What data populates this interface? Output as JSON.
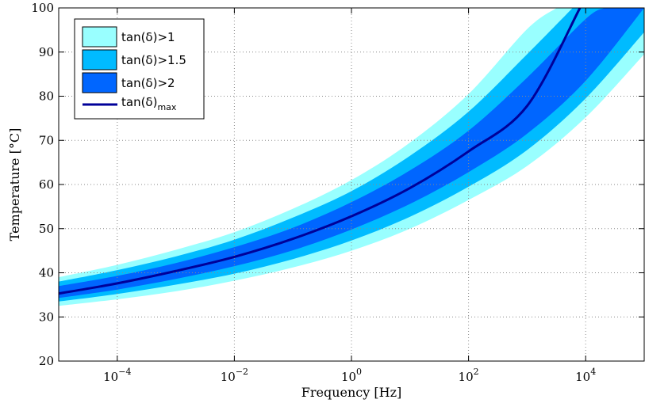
{
  "chart_data": {
    "type": "area",
    "title": "",
    "xlabel": "Frequency [Hz]",
    "ylabel": "Temperature [°C]",
    "x_scale": "log",
    "xlim": [
      1e-05,
      100000.0
    ],
    "ylim": [
      20,
      100
    ],
    "x_ticks": [
      {
        "value": 0.0001,
        "base": "10",
        "exp": "−4"
      },
      {
        "value": 0.01,
        "base": "10",
        "exp": "−2"
      },
      {
        "value": 1,
        "base": "10",
        "exp": "0"
      },
      {
        "value": 100,
        "base": "10",
        "exp": "2"
      },
      {
        "value": 10000,
        "base": "10",
        "exp": "4"
      }
    ],
    "y_ticks": [
      20,
      30,
      40,
      50,
      60,
      70,
      80,
      90,
      100
    ],
    "grid": true,
    "legend_position": "top-left",
    "legend": {
      "band1": "tan(δ)>1",
      "band15": "tan(δ)>1.5",
      "band2": "tan(δ)>2",
      "line_base": "tan(δ)",
      "line_sub": "max"
    },
    "colors": {
      "band1": "#99FFFF",
      "band15": "#00BBFF",
      "band2": "#0066FF",
      "line": "#000099"
    },
    "series": [
      {
        "key": "band1",
        "x": [
          1e-05,
          0.0001,
          0.001,
          0.01,
          0.1,
          1,
          10,
          100,
          1000,
          3200
        ],
        "upper": [
          39,
          41.8,
          45.2,
          49.2,
          54.5,
          61,
          69.5,
          80.5,
          95.2,
          100
        ],
        "x_lower": [
          1e-05,
          0.0001,
          0.001,
          0.01,
          0.1,
          1,
          10,
          100,
          1000,
          10000,
          100000
        ],
        "lower": [
          32.5,
          34,
          35.8,
          38.2,
          41.2,
          45,
          50,
          56.5,
          64.2,
          75.2,
          89.5
        ]
      },
      {
        "key": "band15",
        "x": [
          1e-05,
          0.0001,
          0.001,
          0.01,
          0.1,
          1,
          10,
          100,
          1000,
          6000
        ],
        "upper": [
          38,
          40.6,
          43.7,
          47.5,
          52.5,
          58.5,
          66.5,
          76.5,
          89.5,
          100
        ],
        "x_lower": [
          1e-05,
          0.0001,
          0.001,
          0.01,
          0.1,
          1,
          10,
          100,
          1000,
          10000,
          100000
        ],
        "lower": [
          33.5,
          35.2,
          37.3,
          39.8,
          43.1,
          47.3,
          52.7,
          59.5,
          67.8,
          79.5,
          94.5
        ]
      },
      {
        "key": "band2",
        "x": [
          1e-05,
          0.0001,
          0.001,
          0.01,
          0.1,
          1,
          10,
          100,
          1000,
          10000,
          21000
        ],
        "upper": [
          37,
          39.3,
          42.2,
          45.8,
          50.2,
          56,
          63.2,
          72.2,
          84.2,
          97.5,
          100
        ],
        "x_lower": [
          1e-05,
          0.0001,
          0.001,
          0.01,
          0.1,
          1,
          10,
          100,
          1000,
          10000,
          100000
        ],
        "lower": [
          34.3,
          36.2,
          38.6,
          41.5,
          45.1,
          49.8,
          55.6,
          62.8,
          71.5,
          83.5,
          100
        ]
      },
      {
        "key": "line",
        "x": [
          1e-05,
          0.0001,
          0.001,
          0.01,
          0.1,
          1,
          10,
          100,
          1000,
          8000
        ],
        "y": [
          35.3,
          37.6,
          40.4,
          43.6,
          47.7,
          52.8,
          59.2,
          67.5,
          77.8,
          100
        ]
      }
    ]
  }
}
